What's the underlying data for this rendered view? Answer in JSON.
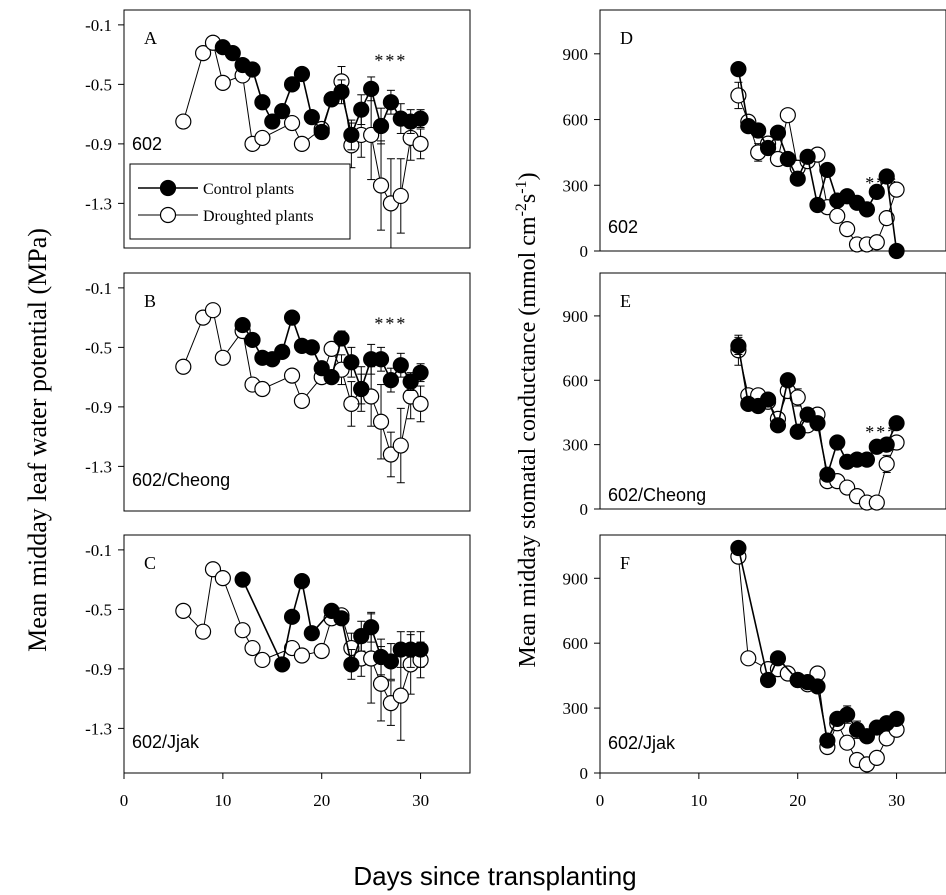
{
  "figure": {
    "x_title": "Days since transplanting",
    "left_y_title": "Mean midday leaf water potential (MPa)",
    "right_y_title_main": "Mean midday stomatal conductance (mmol cm",
    "right_y_title_sup1": "-2",
    "right_y_title_mid": "s",
    "right_y_title_sup2": "-1",
    "right_y_title_end": ")"
  },
  "legend": {
    "control": "Control plants",
    "drought": "Droughted plants"
  },
  "chart_data": [
    {
      "type": "line",
      "letter": "A",
      "label": "602",
      "xlim": [
        0,
        35
      ],
      "ylim": [
        -1.6,
        0.0
      ],
      "yticks": [
        "-0.1",
        "-0.5",
        "-0.9",
        "-1.3"
      ],
      "ytick_values": [
        -0.1,
        -0.5,
        -0.9,
        -1.3
      ],
      "xticks": [],
      "significance": "***",
      "significance_x": 27,
      "significance_y": -0.34,
      "series": [
        {
          "name": "Control plants",
          "x": [
            10,
            11,
            12,
            13,
            14,
            15,
            16,
            17,
            18,
            19,
            20,
            21,
            22,
            23,
            24,
            25,
            26,
            27,
            28,
            29,
            30
          ],
          "y": [
            -0.25,
            -0.29,
            -0.37,
            -0.4,
            -0.62,
            -0.75,
            -0.68,
            -0.5,
            -0.43,
            -0.72,
            -0.82,
            -0.6,
            -0.55,
            -0.84,
            -0.67,
            -0.53,
            -0.78,
            -0.62,
            -0.73,
            -0.75,
            -0.73
          ],
          "err": [
            0,
            0,
            0,
            0,
            0,
            0,
            0,
            0,
            0,
            0,
            0,
            0,
            0.08,
            0.1,
            0.1,
            0.08,
            0.12,
            0.08,
            0.1,
            0.08,
            0.06
          ]
        },
        {
          "name": "Droughted plants",
          "x": [
            6,
            8,
            9,
            10,
            12,
            13,
            14,
            17,
            18,
            20,
            21,
            22,
            23,
            24,
            25,
            26,
            27,
            28,
            29,
            30
          ],
          "y": [
            -0.75,
            -0.29,
            -0.22,
            -0.49,
            -0.44,
            -0.9,
            -0.86,
            -0.76,
            -0.9,
            -0.8,
            -0.6,
            -0.48,
            -0.91,
            -0.84,
            -0.84,
            -1.18,
            -1.3,
            -1.25,
            -0.86,
            -0.9
          ],
          "err": [
            0,
            0,
            0,
            0,
            0,
            0,
            0,
            0,
            0,
            0,
            0,
            0.1,
            0.15,
            0.15,
            0.3,
            0.3,
            0.3,
            0.25,
            0.15,
            0.1
          ]
        }
      ]
    },
    {
      "type": "line",
      "letter": "B",
      "label": "602/Cheong",
      "xlim": [
        0,
        35
      ],
      "ylim": [
        -1.6,
        0.0
      ],
      "yticks": [
        "-0.1",
        "-0.5",
        "-0.9",
        "-1.3"
      ],
      "ytick_values": [
        -0.1,
        -0.5,
        -0.9,
        -1.3
      ],
      "xticks": [],
      "significance": "***",
      "significance_x": 27,
      "significance_y": -0.34,
      "series": [
        {
          "name": "Control plants",
          "x": [
            12,
            13,
            14,
            15,
            16,
            17,
            18,
            19,
            20,
            21,
            22,
            23,
            24,
            25,
            26,
            27,
            28,
            29,
            30
          ],
          "y": [
            -0.35,
            -0.45,
            -0.57,
            -0.58,
            -0.53,
            -0.3,
            -0.49,
            -0.5,
            -0.64,
            -0.7,
            -0.44,
            -0.6,
            -0.78,
            -0.58,
            -0.58,
            -0.72,
            -0.62,
            -0.73,
            -0.67
          ],
          "err": [
            0,
            0,
            0,
            0,
            0,
            0,
            0,
            0,
            0,
            0,
            0.05,
            0.1,
            0.1,
            0.1,
            0.08,
            0.08,
            0.08,
            0.06,
            0.06
          ]
        },
        {
          "name": "Droughted plants",
          "x": [
            6,
            8,
            9,
            10,
            12,
            13,
            14,
            17,
            18,
            20,
            21,
            22,
            23,
            24,
            25,
            26,
            27,
            28,
            29,
            30
          ],
          "y": [
            -0.63,
            -0.3,
            -0.25,
            -0.57,
            -0.39,
            -0.75,
            -0.78,
            -0.69,
            -0.86,
            -0.7,
            -0.51,
            -0.65,
            -0.88,
            -0.78,
            -0.83,
            -1.0,
            -1.22,
            -1.16,
            -0.83,
            -0.88
          ],
          "err": [
            0,
            0,
            0,
            0,
            0,
            0,
            0,
            0,
            0,
            0,
            0,
            0.1,
            0.15,
            0.15,
            0.2,
            0.25,
            0.15,
            0.25,
            0.15,
            0.12
          ]
        }
      ]
    },
    {
      "type": "line",
      "letter": "C",
      "label": "602/Jjak",
      "xlim": [
        0,
        35
      ],
      "ylim": [
        -1.6,
        0.0
      ],
      "yticks": [
        "-0.1",
        "-0.5",
        "-0.9",
        "-1.3"
      ],
      "ytick_values": [
        -0.1,
        -0.5,
        -0.9,
        -1.3
      ],
      "xticks": [
        "0",
        "10",
        "20",
        "30"
      ],
      "significance": "",
      "series": [
        {
          "name": "Control plants",
          "x": [
            12,
            16,
            17,
            18,
            19,
            21,
            22,
            23,
            24,
            25,
            26,
            27,
            28,
            29,
            30
          ],
          "y": [
            -0.3,
            -0.87,
            -0.55,
            -0.31,
            -0.66,
            -0.51,
            -0.56,
            -0.87,
            -0.68,
            -0.62,
            -0.82,
            -0.85,
            -0.77,
            -0.77,
            -0.77
          ],
          "err": [
            0,
            0,
            0,
            0,
            0,
            0,
            0,
            0.1,
            0.1,
            0.1,
            0.12,
            0.12,
            0.12,
            0.12,
            0.12
          ]
        },
        {
          "name": "Droughted plants",
          "x": [
            6,
            8,
            9,
            10,
            12,
            13,
            14,
            17,
            18,
            20,
            21,
            22,
            23,
            24,
            25,
            26,
            27,
            28,
            29,
            30
          ],
          "y": [
            -0.51,
            -0.65,
            -0.23,
            -0.29,
            -0.64,
            -0.76,
            -0.84,
            -0.76,
            -0.81,
            -0.78,
            -0.56,
            -0.54,
            -0.76,
            -0.83,
            -0.83,
            -1.0,
            -1.13,
            -1.08,
            -0.87,
            -0.84
          ],
          "err": [
            0,
            0,
            0,
            0,
            0,
            0,
            0,
            0,
            0,
            0,
            0,
            0,
            0.1,
            0.12,
            0.3,
            0.25,
            0.15,
            0.3,
            0.2,
            0.12
          ]
        }
      ]
    },
    {
      "type": "line",
      "letter": "D",
      "label": "602",
      "xlim": [
        0,
        35
      ],
      "ylim": [
        0,
        1100
      ],
      "yticks": [
        "0",
        "300",
        "600",
        "900"
      ],
      "ytick_values": [
        0,
        300,
        600,
        900
      ],
      "xticks": [],
      "significance": "***",
      "significance_x": 28.5,
      "significance_y": 310,
      "series": [
        {
          "name": "Control plants",
          "x": [
            14,
            15,
            16,
            17,
            18,
            19,
            20,
            21,
            22,
            23,
            24,
            25,
            26,
            27,
            28,
            29,
            30
          ],
          "y": [
            830,
            570,
            550,
            470,
            540,
            420,
            330,
            430,
            210,
            370,
            230,
            250,
            220,
            190,
            270,
            340,
            0
          ],
          "err": [
            25,
            20,
            30,
            25,
            20,
            20,
            20,
            25,
            25,
            20,
            20,
            20,
            25,
            30,
            30,
            30,
            0
          ]
        },
        {
          "name": "Droughted plants",
          "x": [
            14,
            15,
            16,
            17,
            18,
            19,
            20,
            21,
            22,
            23,
            24,
            25,
            26,
            27,
            28,
            29,
            30
          ],
          "y": [
            710,
            590,
            450,
            490,
            420,
            620,
            380,
            410,
            440,
            200,
            160,
            100,
            30,
            30,
            40,
            150,
            280
          ],
          "err": [
            60,
            30,
            40,
            30,
            20,
            20,
            20,
            20,
            20,
            30,
            20,
            20,
            10,
            10,
            10,
            20,
            30
          ]
        }
      ]
    },
    {
      "type": "line",
      "letter": "E",
      "label": "602/Cheong",
      "xlim": [
        0,
        35
      ],
      "ylim": [
        0,
        1100
      ],
      "yticks": [
        "0",
        "300",
        "600",
        "900"
      ],
      "ytick_values": [
        0,
        300,
        600,
        900
      ],
      "xticks": [],
      "significance": "***",
      "significance_x": 28.5,
      "significance_y": 360,
      "series": [
        {
          "name": "Control plants",
          "x": [
            14,
            15,
            16,
            17,
            18,
            19,
            20,
            21,
            22,
            23,
            24,
            25,
            26,
            27,
            28,
            29,
            30
          ],
          "y": [
            760,
            490,
            480,
            510,
            390,
            600,
            360,
            440,
            400,
            160,
            310,
            220,
            230,
            230,
            290,
            300,
            400
          ],
          "err": [
            40,
            20,
            20,
            20,
            20,
            30,
            20,
            20,
            20,
            20,
            20,
            20,
            20,
            20,
            20,
            20,
            20
          ]
        },
        {
          "name": "Droughted plants",
          "x": [
            14,
            15,
            16,
            17,
            18,
            19,
            20,
            21,
            22,
            23,
            24,
            25,
            26,
            27,
            28,
            29,
            30
          ],
          "y": [
            740,
            530,
            530,
            500,
            420,
            550,
            520,
            390,
            440,
            130,
            130,
            100,
            60,
            30,
            30,
            210,
            310
          ],
          "err": [
            70,
            30,
            20,
            20,
            20,
            30,
            40,
            20,
            20,
            20,
            20,
            15,
            10,
            10,
            10,
            40,
            30
          ]
        }
      ]
    },
    {
      "type": "line",
      "letter": "F",
      "label": "602/Jjak",
      "xlim": [
        0,
        35
      ],
      "ylim": [
        0,
        1100
      ],
      "yticks": [
        "0",
        "300",
        "600",
        "900"
      ],
      "ytick_values": [
        0,
        300,
        600,
        900
      ],
      "xticks": [
        "0",
        "10",
        "20",
        "30"
      ],
      "significance": "",
      "series": [
        {
          "name": "Control plants",
          "x": [
            14,
            17,
            18,
            20,
            21,
            22,
            23,
            24,
            25,
            26,
            27,
            28,
            29,
            30
          ],
          "y": [
            1040,
            430,
            530,
            430,
            420,
            400,
            150,
            250,
            270,
            200,
            170,
            210,
            230,
            250
          ],
          "err": [
            20,
            20,
            20,
            20,
            20,
            20,
            20,
            30,
            40,
            40,
            30,
            30,
            30,
            20
          ]
        },
        {
          "name": "Droughted plants",
          "x": [
            14,
            15,
            17,
            18,
            19,
            20,
            21,
            22,
            23,
            24,
            25,
            26,
            27,
            28,
            29,
            30
          ],
          "y": [
            1000,
            530,
            480,
            480,
            460,
            430,
            410,
            460,
            120,
            230,
            140,
            60,
            40,
            70,
            160,
            200
          ],
          "err": [
            20,
            20,
            20,
            20,
            20,
            20,
            20,
            20,
            20,
            20,
            30,
            10,
            10,
            10,
            20,
            20
          ]
        }
      ]
    }
  ]
}
